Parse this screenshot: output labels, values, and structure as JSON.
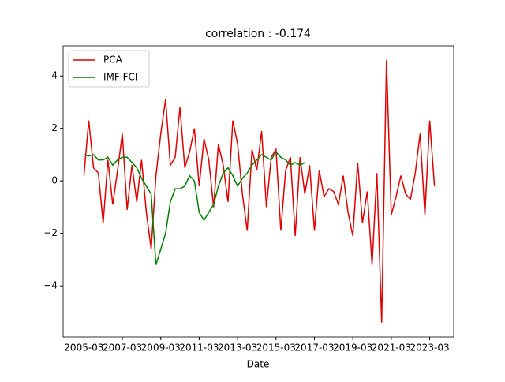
{
  "chart_data": {
    "type": "line",
    "title": "correlation : -0.174",
    "x_label": "Date",
    "x": [
      "2005-03",
      "2005-06",
      "2005-09",
      "2005-12",
      "2006-03",
      "2006-06",
      "2006-09",
      "2006-12",
      "2007-03",
      "2007-06",
      "2007-09",
      "2007-12",
      "2008-03",
      "2008-06",
      "2008-09",
      "2008-12",
      "2009-03",
      "2009-06",
      "2009-09",
      "2009-12",
      "2010-03",
      "2010-06",
      "2010-09",
      "2010-12",
      "2011-03",
      "2011-06",
      "2011-09",
      "2011-12",
      "2012-03",
      "2012-06",
      "2012-09",
      "2012-12",
      "2013-03",
      "2013-06",
      "2013-09",
      "2013-12",
      "2014-03",
      "2014-06",
      "2014-09",
      "2014-12",
      "2015-03",
      "2015-06",
      "2015-09",
      "2015-12",
      "2016-03",
      "2016-06",
      "2016-09",
      "2016-12",
      "2017-03",
      "2017-06",
      "2017-09",
      "2017-12",
      "2018-03",
      "2018-06",
      "2018-09",
      "2018-12",
      "2019-03",
      "2019-06",
      "2019-09",
      "2019-12",
      "2020-03",
      "2020-06",
      "2020-09",
      "2020-12",
      "2021-03",
      "2021-06",
      "2021-09",
      "2021-12",
      "2022-03",
      "2022-06",
      "2022-09",
      "2022-12",
      "2023-03",
      "2023-06"
    ],
    "series": [
      {
        "name": "PCA",
        "color": "#e00000",
        "values": [
          0.2,
          2.3,
          0.5,
          0.3,
          -1.6,
          0.8,
          -0.9,
          0.4,
          1.8,
          -1.1,
          0.6,
          -0.8,
          0.8,
          -1.2,
          -2.6,
          0.2,
          1.8,
          3.1,
          0.6,
          0.9,
          2.8,
          0.5,
          1.1,
          2.0,
          -0.2,
          1.6,
          0.8,
          -1.0,
          1.4,
          0.6,
          -0.8,
          2.3,
          1.4,
          -0.5,
          -1.9,
          1.2,
          0.4,
          1.9,
          -1.0,
          0.9,
          1.2,
          -1.9,
          0.4,
          0.9,
          -2.1,
          0.9,
          -0.5,
          0.6,
          -1.9,
          0.4,
          -0.6,
          -0.3,
          -0.4,
          -0.9,
          0.2,
          -1.2,
          -2.1,
          0.7,
          -1.6,
          -0.4,
          -3.2,
          0.3,
          -5.4,
          4.6,
          -1.3,
          -0.6,
          0.2,
          -0.5,
          -0.7,
          0.3,
          1.8,
          -1.3,
          2.3,
          -0.2
        ]
      },
      {
        "name": "IMF FCI",
        "color": "#008000",
        "values": [
          1.0,
          0.95,
          1.0,
          0.8,
          0.8,
          0.9,
          0.6,
          0.8,
          0.9,
          0.9,
          0.7,
          0.5,
          0.1,
          -0.2,
          -0.5,
          -3.2,
          -2.6,
          -2.0,
          -0.8,
          -0.3,
          -0.3,
          -0.2,
          0.2,
          0.0,
          -1.2,
          -1.5,
          -1.2,
          -0.9,
          -0.2,
          0.3,
          0.5,
          0.2,
          -0.2,
          0.1,
          0.3,
          0.6,
          0.8,
          1.0,
          0.9,
          0.8,
          1.1,
          0.9,
          0.8,
          0.6,
          0.7,
          0.6,
          0.7,
          null,
          null,
          null,
          null,
          null,
          null,
          null,
          null,
          null,
          null,
          null,
          null,
          null,
          null,
          null,
          null,
          null,
          null,
          null,
          null,
          null,
          null,
          null,
          null,
          null,
          null,
          null
        ]
      }
    ],
    "xlim": [
      "2004-02",
      "2024-06"
    ],
    "xticks": [
      "2005-03",
      "2007-03",
      "2009-03",
      "2011-03",
      "2013-03",
      "2015-03",
      "2017-03",
      "2019-03",
      "2021-03",
      "2023-03"
    ],
    "ylim": [
      -5.95,
      5.15
    ],
    "yticks": [
      {
        "value": -4,
        "label": "−4"
      },
      {
        "value": -2,
        "label": "−2"
      },
      0,
      2,
      4
    ],
    "legend": "upper left",
    "grid": false
  }
}
